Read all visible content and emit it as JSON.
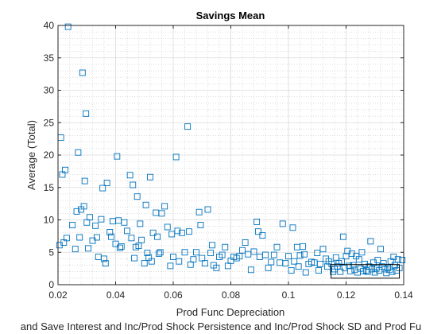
{
  "chart_data": {
    "type": "scatter",
    "title": "Savings Mean",
    "xlabel": "Prod Func Depreciation",
    "ylabel": "Average (Total)",
    "footer": "and Save Interest and Inc/Prod Shock Persistence and Inc/Prod Shock SD and Prod Fu",
    "xlim": [
      0.02,
      0.14
    ],
    "ylim": [
      0,
      40
    ],
    "xticks": [
      0.02,
      0.04,
      0.06,
      0.08,
      0.1,
      0.12,
      0.14
    ],
    "xtick_labels": [
      "0.02",
      "0.04",
      "0.06",
      "0.08",
      "0.1",
      "0.12",
      "0.14"
    ],
    "yticks": [
      0,
      5,
      10,
      15,
      20,
      25,
      30,
      35,
      40
    ],
    "ytick_labels": [
      "0",
      "5",
      "10",
      "15",
      "20",
      "25",
      "30",
      "35",
      "40"
    ],
    "grid": true,
    "marker": "square-open",
    "marker_color": "#0072BD",
    "highlight_box": {
      "x": [
        0.1148,
        0.1385
      ],
      "y": [
        1.0,
        3.1
      ]
    },
    "series": [
      {
        "points": [
          [
            0.0205,
            6.1
          ],
          [
            0.021,
            22.7
          ],
          [
            0.0215,
            17.0
          ],
          [
            0.022,
            6.5
          ],
          [
            0.0225,
            17.7
          ],
          [
            0.023,
            7.2
          ],
          [
            0.0235,
            39.8
          ],
          [
            0.025,
            9.2
          ],
          [
            0.026,
            5.5
          ],
          [
            0.0265,
            11.3
          ],
          [
            0.027,
            20.4
          ],
          [
            0.0275,
            7.3
          ],
          [
            0.028,
            11.6
          ],
          [
            0.0285,
            32.7
          ],
          [
            0.029,
            12.1
          ],
          [
            0.0293,
            16.0
          ],
          [
            0.0297,
            26.4
          ],
          [
            0.03,
            9.6
          ],
          [
            0.0305,
            5.6
          ],
          [
            0.031,
            10.4
          ],
          [
            0.032,
            6.8
          ],
          [
            0.033,
            9.1
          ],
          [
            0.0335,
            7.3
          ],
          [
            0.034,
            4.3
          ],
          [
            0.035,
            10.1
          ],
          [
            0.0355,
            14.9
          ],
          [
            0.036,
            4.0
          ],
          [
            0.0365,
            3.3
          ],
          [
            0.037,
            15.7
          ],
          [
            0.038,
            8.1
          ],
          [
            0.0385,
            7.4
          ],
          [
            0.039,
            9.8
          ],
          [
            0.04,
            6.3
          ],
          [
            0.0405,
            19.8
          ],
          [
            0.041,
            9.9
          ],
          [
            0.0415,
            5.7
          ],
          [
            0.042,
            5.9
          ],
          [
            0.043,
            9.6
          ],
          [
            0.044,
            8.3
          ],
          [
            0.045,
            16.9
          ],
          [
            0.0455,
            7.2
          ],
          [
            0.046,
            15.4
          ],
          [
            0.0465,
            4.1
          ],
          [
            0.047,
            5.8
          ],
          [
            0.0475,
            13.6
          ],
          [
            0.048,
            6.0
          ],
          [
            0.0485,
            9.4
          ],
          [
            0.049,
            6.9
          ],
          [
            0.05,
            3.3
          ],
          [
            0.0505,
            12.3
          ],
          [
            0.051,
            4.9
          ],
          [
            0.0515,
            4.2
          ],
          [
            0.052,
            16.6
          ],
          [
            0.0525,
            3.6
          ],
          [
            0.053,
            8.0
          ],
          [
            0.054,
            11.1
          ],
          [
            0.0545,
            7.4
          ],
          [
            0.055,
            4.8
          ],
          [
            0.0555,
            5.0
          ],
          [
            0.056,
            11.0
          ],
          [
            0.057,
            12.1
          ],
          [
            0.058,
            8.9
          ],
          [
            0.059,
            2.9
          ],
          [
            0.0595,
            7.8
          ],
          [
            0.06,
            4.3
          ],
          [
            0.061,
            19.7
          ],
          [
            0.0615,
            8.3
          ],
          [
            0.062,
            3.6
          ],
          [
            0.063,
            8.0
          ],
          [
            0.064,
            5.0
          ],
          [
            0.065,
            24.4
          ],
          [
            0.0655,
            8.2
          ],
          [
            0.066,
            3.1
          ],
          [
            0.067,
            3.9
          ],
          [
            0.068,
            5.0
          ],
          [
            0.069,
            11.2
          ],
          [
            0.0695,
            9.2
          ],
          [
            0.07,
            4.1
          ],
          [
            0.071,
            3.3
          ],
          [
            0.072,
            11.6
          ],
          [
            0.073,
            4.9
          ],
          [
            0.0735,
            6.1
          ],
          [
            0.074,
            3.0
          ],
          [
            0.075,
            2.6
          ],
          [
            0.076,
            4.3
          ],
          [
            0.077,
            4.6
          ],
          [
            0.078,
            5.8
          ],
          [
            0.079,
            2.9
          ],
          [
            0.08,
            3.7
          ],
          [
            0.081,
            4.3
          ],
          [
            0.082,
            4.1
          ],
          [
            0.083,
            4.4
          ],
          [
            0.084,
            5.3
          ],
          [
            0.085,
            6.5
          ],
          [
            0.086,
            4.7
          ],
          [
            0.087,
            2.3
          ],
          [
            0.088,
            5.1
          ],
          [
            0.089,
            9.7
          ],
          [
            0.0895,
            8.2
          ],
          [
            0.09,
            4.3
          ],
          [
            0.091,
            7.6
          ],
          [
            0.092,
            4.6
          ],
          [
            0.093,
            2.6
          ],
          [
            0.094,
            3.5
          ],
          [
            0.095,
            4.6
          ],
          [
            0.096,
            5.8
          ],
          [
            0.097,
            3.4
          ],
          [
            0.098,
            9.4
          ],
          [
            0.099,
            3.3
          ],
          [
            0.1,
            4.4
          ],
          [
            0.101,
            2.2
          ],
          [
            0.1015,
            8.8
          ],
          [
            0.102,
            3.6
          ],
          [
            0.103,
            5.8
          ],
          [
            0.1035,
            2.8
          ],
          [
            0.104,
            4.5
          ],
          [
            0.105,
            5.9
          ],
          [
            0.1055,
            4.7
          ],
          [
            0.106,
            1.9
          ],
          [
            0.107,
            3.2
          ],
          [
            0.108,
            3.5
          ],
          [
            0.109,
            3.4
          ],
          [
            0.11,
            4.9
          ],
          [
            0.1105,
            2.2
          ],
          [
            0.111,
            3.2
          ],
          [
            0.112,
            5.5
          ],
          [
            0.113,
            4.0
          ],
          [
            0.1135,
            2.8
          ],
          [
            0.114,
            3.6
          ],
          [
            0.115,
            3.2
          ],
          [
            0.1155,
            2.0
          ],
          [
            0.116,
            2.4
          ],
          [
            0.1165,
            4.2
          ],
          [
            0.117,
            2.8
          ],
          [
            0.1175,
            3.3
          ],
          [
            0.118,
            2.0
          ],
          [
            0.1185,
            3.6
          ],
          [
            0.119,
            7.4
          ],
          [
            0.1195,
            2.6
          ],
          [
            0.12,
            4.4
          ],
          [
            0.1205,
            5.2
          ],
          [
            0.121,
            2.9
          ],
          [
            0.1215,
            2.1
          ],
          [
            0.122,
            4.8
          ],
          [
            0.1225,
            3.0
          ],
          [
            0.123,
            2.3
          ],
          [
            0.1235,
            4.4
          ],
          [
            0.124,
            1.9
          ],
          [
            0.1245,
            3.9
          ],
          [
            0.125,
            2.5
          ],
          [
            0.1255,
            5.0
          ],
          [
            0.126,
            2.1
          ],
          [
            0.1265,
            3.2
          ],
          [
            0.127,
            2.2
          ],
          [
            0.1275,
            2.0
          ],
          [
            0.128,
            2.8
          ],
          [
            0.1285,
            6.7
          ],
          [
            0.129,
            2.4
          ],
          [
            0.1295,
            3.4
          ],
          [
            0.13,
            1.9
          ],
          [
            0.1305,
            2.5
          ],
          [
            0.131,
            3.8
          ],
          [
            0.1315,
            2.2
          ],
          [
            0.132,
            5.5
          ],
          [
            0.1325,
            2.8
          ],
          [
            0.133,
            3.3
          ],
          [
            0.1335,
            2.4
          ],
          [
            0.134,
            1.8
          ],
          [
            0.1345,
            2.6
          ],
          [
            0.135,
            2.3
          ],
          [
            0.1355,
            3.6
          ],
          [
            0.136,
            2.0
          ],
          [
            0.1365,
            4.3
          ],
          [
            0.137,
            3.0
          ],
          [
            0.1375,
            2.2
          ],
          [
            0.138,
            3.9
          ],
          [
            0.1385,
            2.6
          ],
          [
            0.1395,
            3.8
          ]
        ]
      }
    ]
  }
}
